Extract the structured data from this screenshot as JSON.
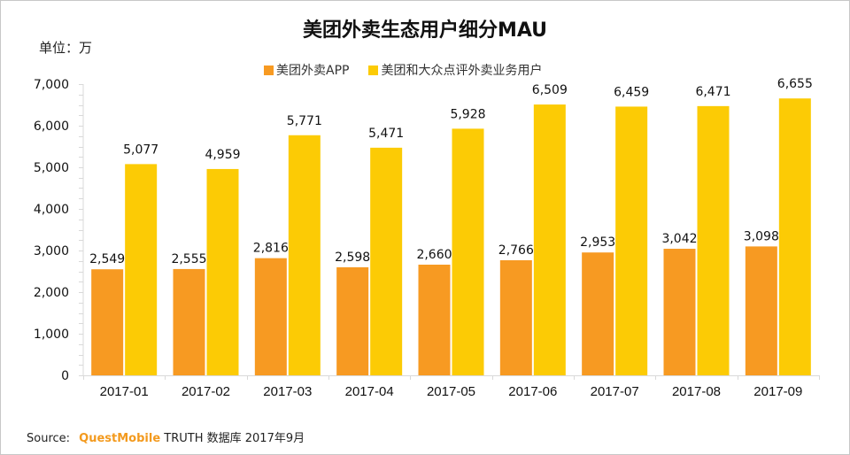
{
  "chart_data": {
    "type": "bar",
    "title": "美团外卖生态用户细分MAU",
    "unit_label": "单位：万",
    "xlabel": "",
    "ylabel": "",
    "ylim": [
      0,
      7000
    ],
    "yticks": [
      0,
      1000,
      2000,
      3000,
      4000,
      5000,
      6000,
      7000
    ],
    "ytick_labels": [
      "0",
      "1,000",
      "2,000",
      "3,000",
      "4,000",
      "5,000",
      "6,000",
      "7,000"
    ],
    "grid": false,
    "legend_position": "top-center",
    "categories": [
      "2017-01",
      "2017-02",
      "2017-03",
      "2017-04",
      "2017-05",
      "2017-06",
      "2017-07",
      "2017-08",
      "2017-09"
    ],
    "series": [
      {
        "name": "美团外卖APP",
        "color": "#f79a22",
        "values": [
          2549,
          2555,
          2816,
          2598,
          2660,
          2766,
          2953,
          3042,
          3098
        ],
        "labels": [
          "2,549",
          "2,555",
          "2,816",
          "2,598",
          "2,660",
          "2,766",
          "2,953",
          "3,042",
          "3,098"
        ]
      },
      {
        "name": "美团和大众点评外卖业务用户",
        "color": "#fccb05",
        "values": [
          5077,
          4959,
          5771,
          5471,
          5928,
          6509,
          6459,
          6471,
          6655
        ],
        "labels": [
          "5,077",
          "4,959",
          "5,771",
          "5,471",
          "5,928",
          "6,509",
          "6,459",
          "6,471",
          "6,655"
        ]
      }
    ]
  },
  "source": {
    "prefix": "Source:",
    "brand": "QuestMobile",
    "suffix": "TRUTH 数据库 2017年9月"
  }
}
